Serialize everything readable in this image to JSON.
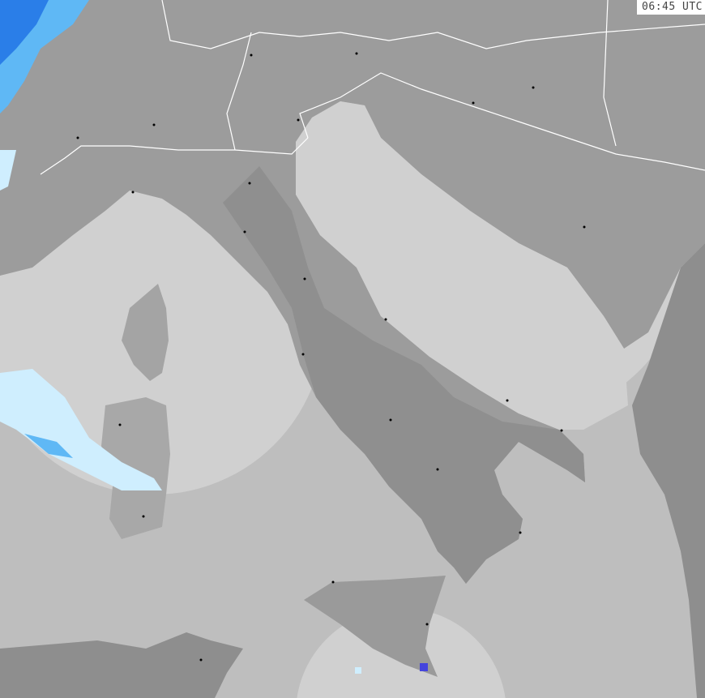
{
  "timestamp": "06:45 UTC",
  "colors": {
    "sea": "#bebebe",
    "land": "#9c9c9c",
    "land_dark": "#8e8e8e",
    "coverage": "#d2d2d2",
    "coverage_land": "#adadad",
    "borders": "#ffffff",
    "precip_light": "#cfeefe",
    "precip_medium": "#5fb8f5",
    "precip_heavy": "#2a7ee8"
  }
}
